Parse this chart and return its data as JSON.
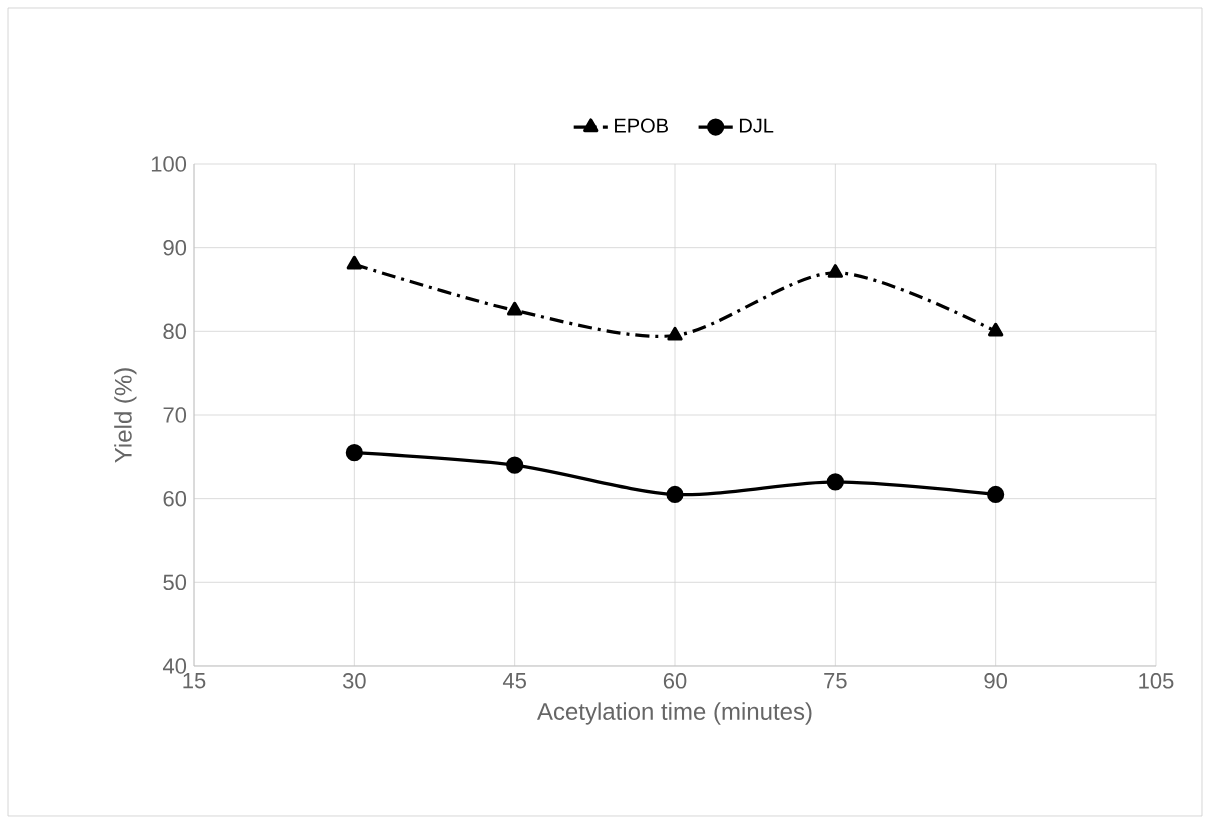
{
  "chart_data": {
    "type": "line",
    "xlabel": "Acetylation time (minutes)",
    "ylabel": "Yield (%)",
    "x": [
      30,
      45,
      60,
      75,
      90
    ],
    "series": [
      {
        "name": "EPOB",
        "color": "#000000",
        "values": [
          88,
          82.5,
          79.5,
          87,
          80
        ],
        "marker": "triangle",
        "line_style": "dashed"
      },
      {
        "name": "DJL",
        "color": "#000000",
        "values": [
          65.5,
          64,
          60.5,
          62,
          60.5
        ],
        "marker": "circle",
        "line_style": "solid"
      }
    ],
    "xlim": [
      15,
      105
    ],
    "xticks": [
      15,
      30,
      45,
      60,
      75,
      90,
      105
    ],
    "ylim": [
      40,
      100
    ],
    "yticks": [
      40,
      50,
      60,
      70,
      80,
      90,
      100
    ],
    "grid": true,
    "legend": "top"
  }
}
